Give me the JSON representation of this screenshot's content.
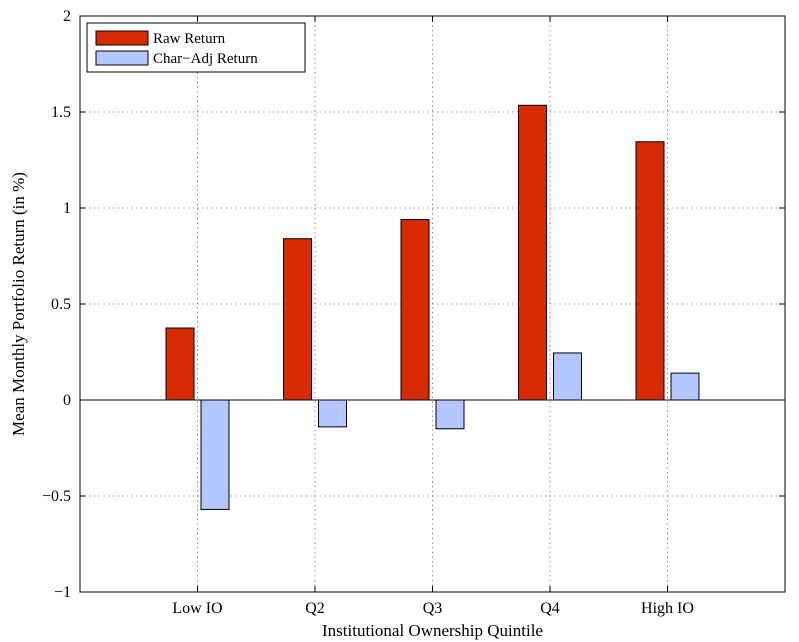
{
  "chart_data": {
    "type": "bar",
    "xlabel": "Institutional Ownership Quintile",
    "ylabel": "Mean Monthly Portfolio Return (in %)",
    "categories": [
      "Low IO",
      "Q2",
      "Q3",
      "Q4",
      "High IO"
    ],
    "series": [
      {
        "name": "Raw Return",
        "color": "#d62b00",
        "values": [
          0.375,
          0.84,
          0.94,
          1.535,
          1.345
        ]
      },
      {
        "name": "Char−Adj Return",
        "color": "#b3c6ff",
        "values": [
          -0.57,
          -0.14,
          -0.15,
          0.245,
          0.14
        ]
      }
    ],
    "ylim": [
      -1,
      2
    ],
    "yticks": [
      -1,
      -0.5,
      0,
      0.5,
      1,
      1.5,
      2
    ],
    "ytick_labels": [
      "−1",
      "−0.5",
      "0",
      "0.5",
      "1",
      "1.5",
      "2"
    ],
    "grid": true,
    "legend_position": "top-left"
  }
}
